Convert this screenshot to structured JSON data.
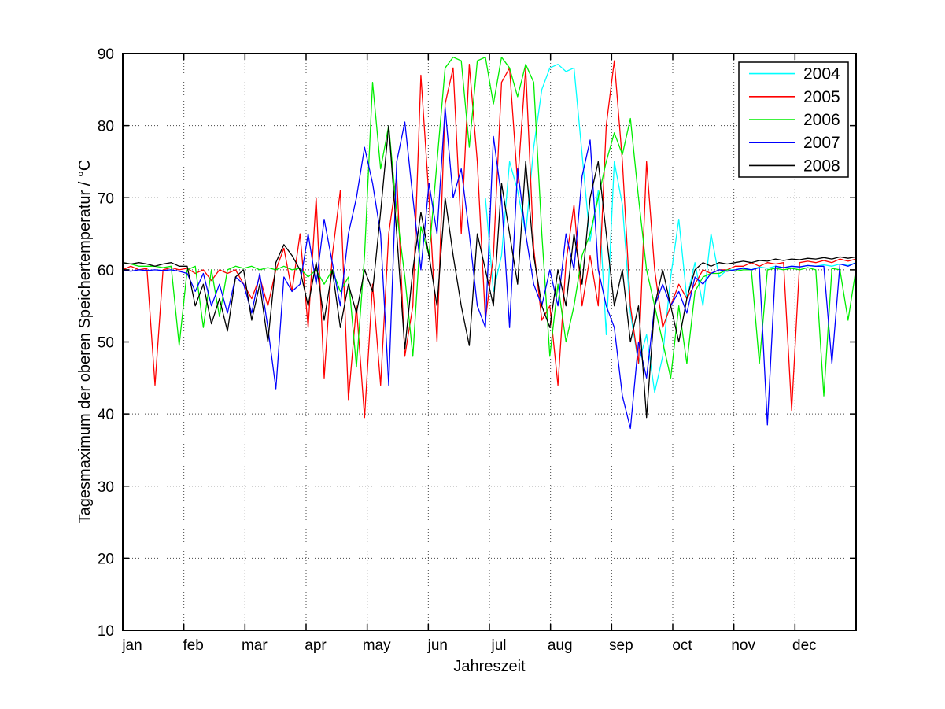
{
  "chart_data": {
    "type": "line",
    "title": "",
    "xlabel": "Jahreszeit",
    "ylabel": "Tagesmaximum der oberen Speichertemperatur / °C",
    "x_mode": "day_of_year",
    "xlim": [
      1,
      365
    ],
    "ylim": [
      10,
      90
    ],
    "y_ticks": [
      10,
      20,
      30,
      40,
      50,
      60,
      70,
      80,
      90
    ],
    "x_ticks": {
      "labels": [
        "jan",
        "feb",
        "mar",
        "apr",
        "may",
        "jun",
        "jul",
        "aug",
        "sep",
        "oct",
        "nov",
        "dec"
      ],
      "start_days": [
        1,
        32,
        60,
        91,
        121,
        152,
        182,
        213,
        244,
        274,
        305,
        335
      ]
    },
    "grid": true,
    "grid_style": "dotted",
    "legend_position": "top-right",
    "sampling": {
      "step_days": 4,
      "start_day": 1,
      "note": "values estimated from plot at 4-day intervals; day = 1 + 4 * index; null = no data drawn"
    },
    "axis_color": "#000000",
    "series": [
      {
        "name": "2004",
        "color": "#00ffff",
        "values": [
          null,
          null,
          null,
          null,
          null,
          null,
          null,
          null,
          null,
          null,
          null,
          null,
          null,
          null,
          null,
          null,
          null,
          null,
          null,
          null,
          null,
          null,
          null,
          null,
          null,
          null,
          null,
          null,
          null,
          null,
          null,
          null,
          null,
          null,
          null,
          null,
          null,
          null,
          null,
          null,
          null,
          null,
          null,
          null,
          null,
          70,
          57,
          62,
          75,
          71,
          65,
          77,
          85,
          88,
          88.5,
          87.5,
          88,
          76,
          64,
          71,
          51,
          75,
          69,
          54,
          47,
          51,
          43,
          48,
          59,
          67,
          56,
          61,
          55,
          65,
          59,
          60,
          60,
          60.3,
          60,
          60.4,
          60.2,
          60.5,
          60.3,
          60.5,
          60.4,
          60.6,
          60.5,
          60.7,
          60.5,
          60.8,
          60.6,
          61
        ]
      },
      {
        "name": "2005",
        "color": "#ff0000",
        "values": [
          60,
          60.5,
          60,
          60.2,
          44,
          60,
          60.3,
          60,
          60.2,
          59.5,
          60,
          58.5,
          60,
          59.5,
          60,
          58,
          56,
          59,
          55,
          60,
          63,
          57,
          65,
          52,
          70,
          45,
          62,
          71,
          42,
          55,
          39.5,
          58,
          44,
          65,
          73,
          48,
          55,
          87,
          70,
          50,
          83,
          88,
          65,
          88.5,
          75,
          53,
          62,
          86,
          88,
          72,
          88,
          63,
          53,
          55,
          44,
          61,
          69,
          55,
          62,
          55,
          80,
          89,
          75,
          55,
          47,
          75,
          60,
          52,
          55,
          58,
          56,
          58,
          60,
          59.5,
          60,
          60,
          60.5,
          60.5,
          61,
          60.5,
          61,
          60.8,
          61,
          40.5,
          61,
          61.2,
          61,
          61.3,
          61,
          61.5,
          61.2,
          61.5
        ]
      },
      {
        "name": "2006",
        "color": "#00ee00",
        "values": [
          61,
          60.8,
          60.5,
          60.5,
          60.5,
          60.3,
          60.5,
          49.5,
          60,
          60.5,
          52,
          60,
          53.5,
          60,
          60.5,
          60.2,
          60.5,
          60,
          60.3,
          60,
          60.5,
          60,
          60.2,
          59,
          60,
          58,
          60,
          57,
          59,
          46.5,
          62,
          86,
          74,
          80,
          68,
          59,
          48,
          66,
          62,
          75,
          88,
          89.5,
          89,
          77,
          89,
          89.5,
          83,
          89.5,
          88,
          84,
          88.5,
          86,
          65,
          48,
          58,
          50,
          55,
          62,
          65,
          70,
          75,
          79,
          76,
          81,
          70,
          60,
          55,
          50,
          45,
          55,
          47,
          57,
          59,
          59.5,
          59.5,
          60,
          59.8,
          60,
          60,
          47,
          60,
          60.2,
          60,
          60.2,
          60,
          60.3,
          60,
          42.5,
          60.2,
          60,
          53,
          60.2
        ]
      },
      {
        "name": "2007",
        "color": "#0000ff",
        "values": [
          60,
          59.8,
          60,
          59.9,
          60,
          59.9,
          60,
          59.8,
          59.5,
          57,
          59.5,
          55,
          58,
          54,
          59,
          58,
          54,
          59.5,
          52,
          43.5,
          59,
          57,
          58,
          65,
          58,
          67,
          61,
          55,
          65,
          70,
          77,
          72,
          65,
          44,
          75,
          80.5,
          70,
          60,
          72,
          65,
          82.5,
          70,
          74,
          65,
          55,
          52,
          78.5,
          70,
          52,
          74,
          65,
          58,
          55,
          60,
          55,
          65,
          60,
          73,
          78,
          60,
          55,
          52,
          42.5,
          38,
          50,
          45,
          55,
          58,
          55,
          57,
          54,
          59,
          58,
          59.5,
          60,
          59.8,
          60,
          60.2,
          60,
          60.3,
          38.5,
          60.5,
          60.3,
          60.5,
          60.4,
          60.6,
          60.5,
          60.5,
          47,
          60.8,
          60.5,
          61
        ]
      },
      {
        "name": "2008",
        "color": "#000000",
        "values": [
          61,
          60.8,
          61,
          60.8,
          60.5,
          60.8,
          61,
          60.5,
          60.5,
          55,
          58,
          52.5,
          56,
          51.5,
          59,
          60,
          53,
          58,
          50,
          61,
          63.5,
          62,
          60,
          55,
          61,
          53,
          60,
          52,
          58,
          54,
          60,
          57,
          68,
          80,
          65,
          49,
          60,
          68,
          62,
          55,
          70,
          62,
          55,
          49.5,
          65,
          60,
          55,
          72,
          65,
          58,
          75,
          62,
          55,
          52,
          60,
          55,
          65,
          58,
          70,
          75,
          65,
          55,
          60,
          50,
          55,
          39.5,
          55,
          60,
          55,
          50,
          56,
          60,
          61,
          60.5,
          61,
          60.8,
          61,
          61.2,
          61,
          61.3,
          61.2,
          61.5,
          61.3,
          61.5,
          61.4,
          61.6,
          61.5,
          61.7,
          61.5,
          61.8,
          61.6,
          61.8
        ]
      }
    ]
  }
}
